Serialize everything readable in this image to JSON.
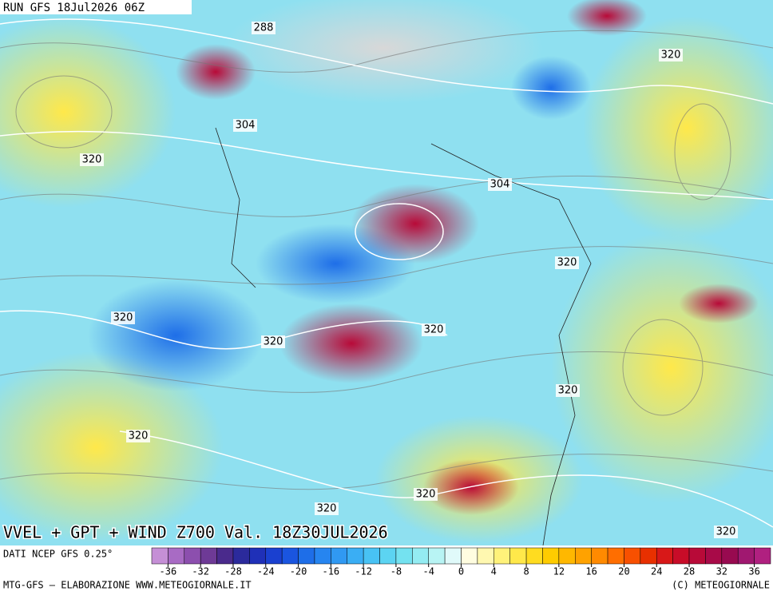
{
  "header": {
    "run": "RUN GFS 18Jul2026 06Z"
  },
  "contour_labels": [
    "288",
    "320",
    "304",
    "320",
    "304",
    "320",
    "320",
    "320",
    "320",
    "320",
    "320",
    "320",
    "320",
    "320"
  ],
  "title": "VVEL + GPT + WIND Z700 Val. 18Z30JUL2026",
  "source": "DATI NCEP GFS 0.25°",
  "colorbar": {
    "min": -38,
    "max": 38,
    "ticks": [
      -36,
      -32,
      -28,
      -24,
      -20,
      -16,
      -12,
      -8,
      -4,
      0,
      4,
      8,
      12,
      16,
      20,
      24,
      28,
      32,
      36
    ],
    "colors": [
      "#c58fd6",
      "#a86bc4",
      "#8c4fae",
      "#6e3a96",
      "#4a2a8c",
      "#2b2a9c",
      "#1f30b8",
      "#1a40d0",
      "#1a55e0",
      "#1e6ee8",
      "#2685f0",
      "#3099f2",
      "#3aaef4",
      "#48c2f4",
      "#5cd4f2",
      "#74e2f0",
      "#94ecf2",
      "#b8f4f4",
      "#e0fafa",
      "#fffde0",
      "#fff8b0",
      "#fff27a",
      "#ffe84a",
      "#ffdc20",
      "#ffcc00",
      "#ffb800",
      "#ffa200",
      "#ff8a00",
      "#ff6e00",
      "#f85000",
      "#e83000",
      "#d81818",
      "#c80c28",
      "#b80a38",
      "#a80a48",
      "#980a50",
      "#a01870",
      "#b02080"
    ]
  },
  "footer": {
    "left": "MTG-GFS – ELABORAZIONE WWW.METEOGIORNALE.IT",
    "right": "(C) METEOGIORNALE"
  }
}
